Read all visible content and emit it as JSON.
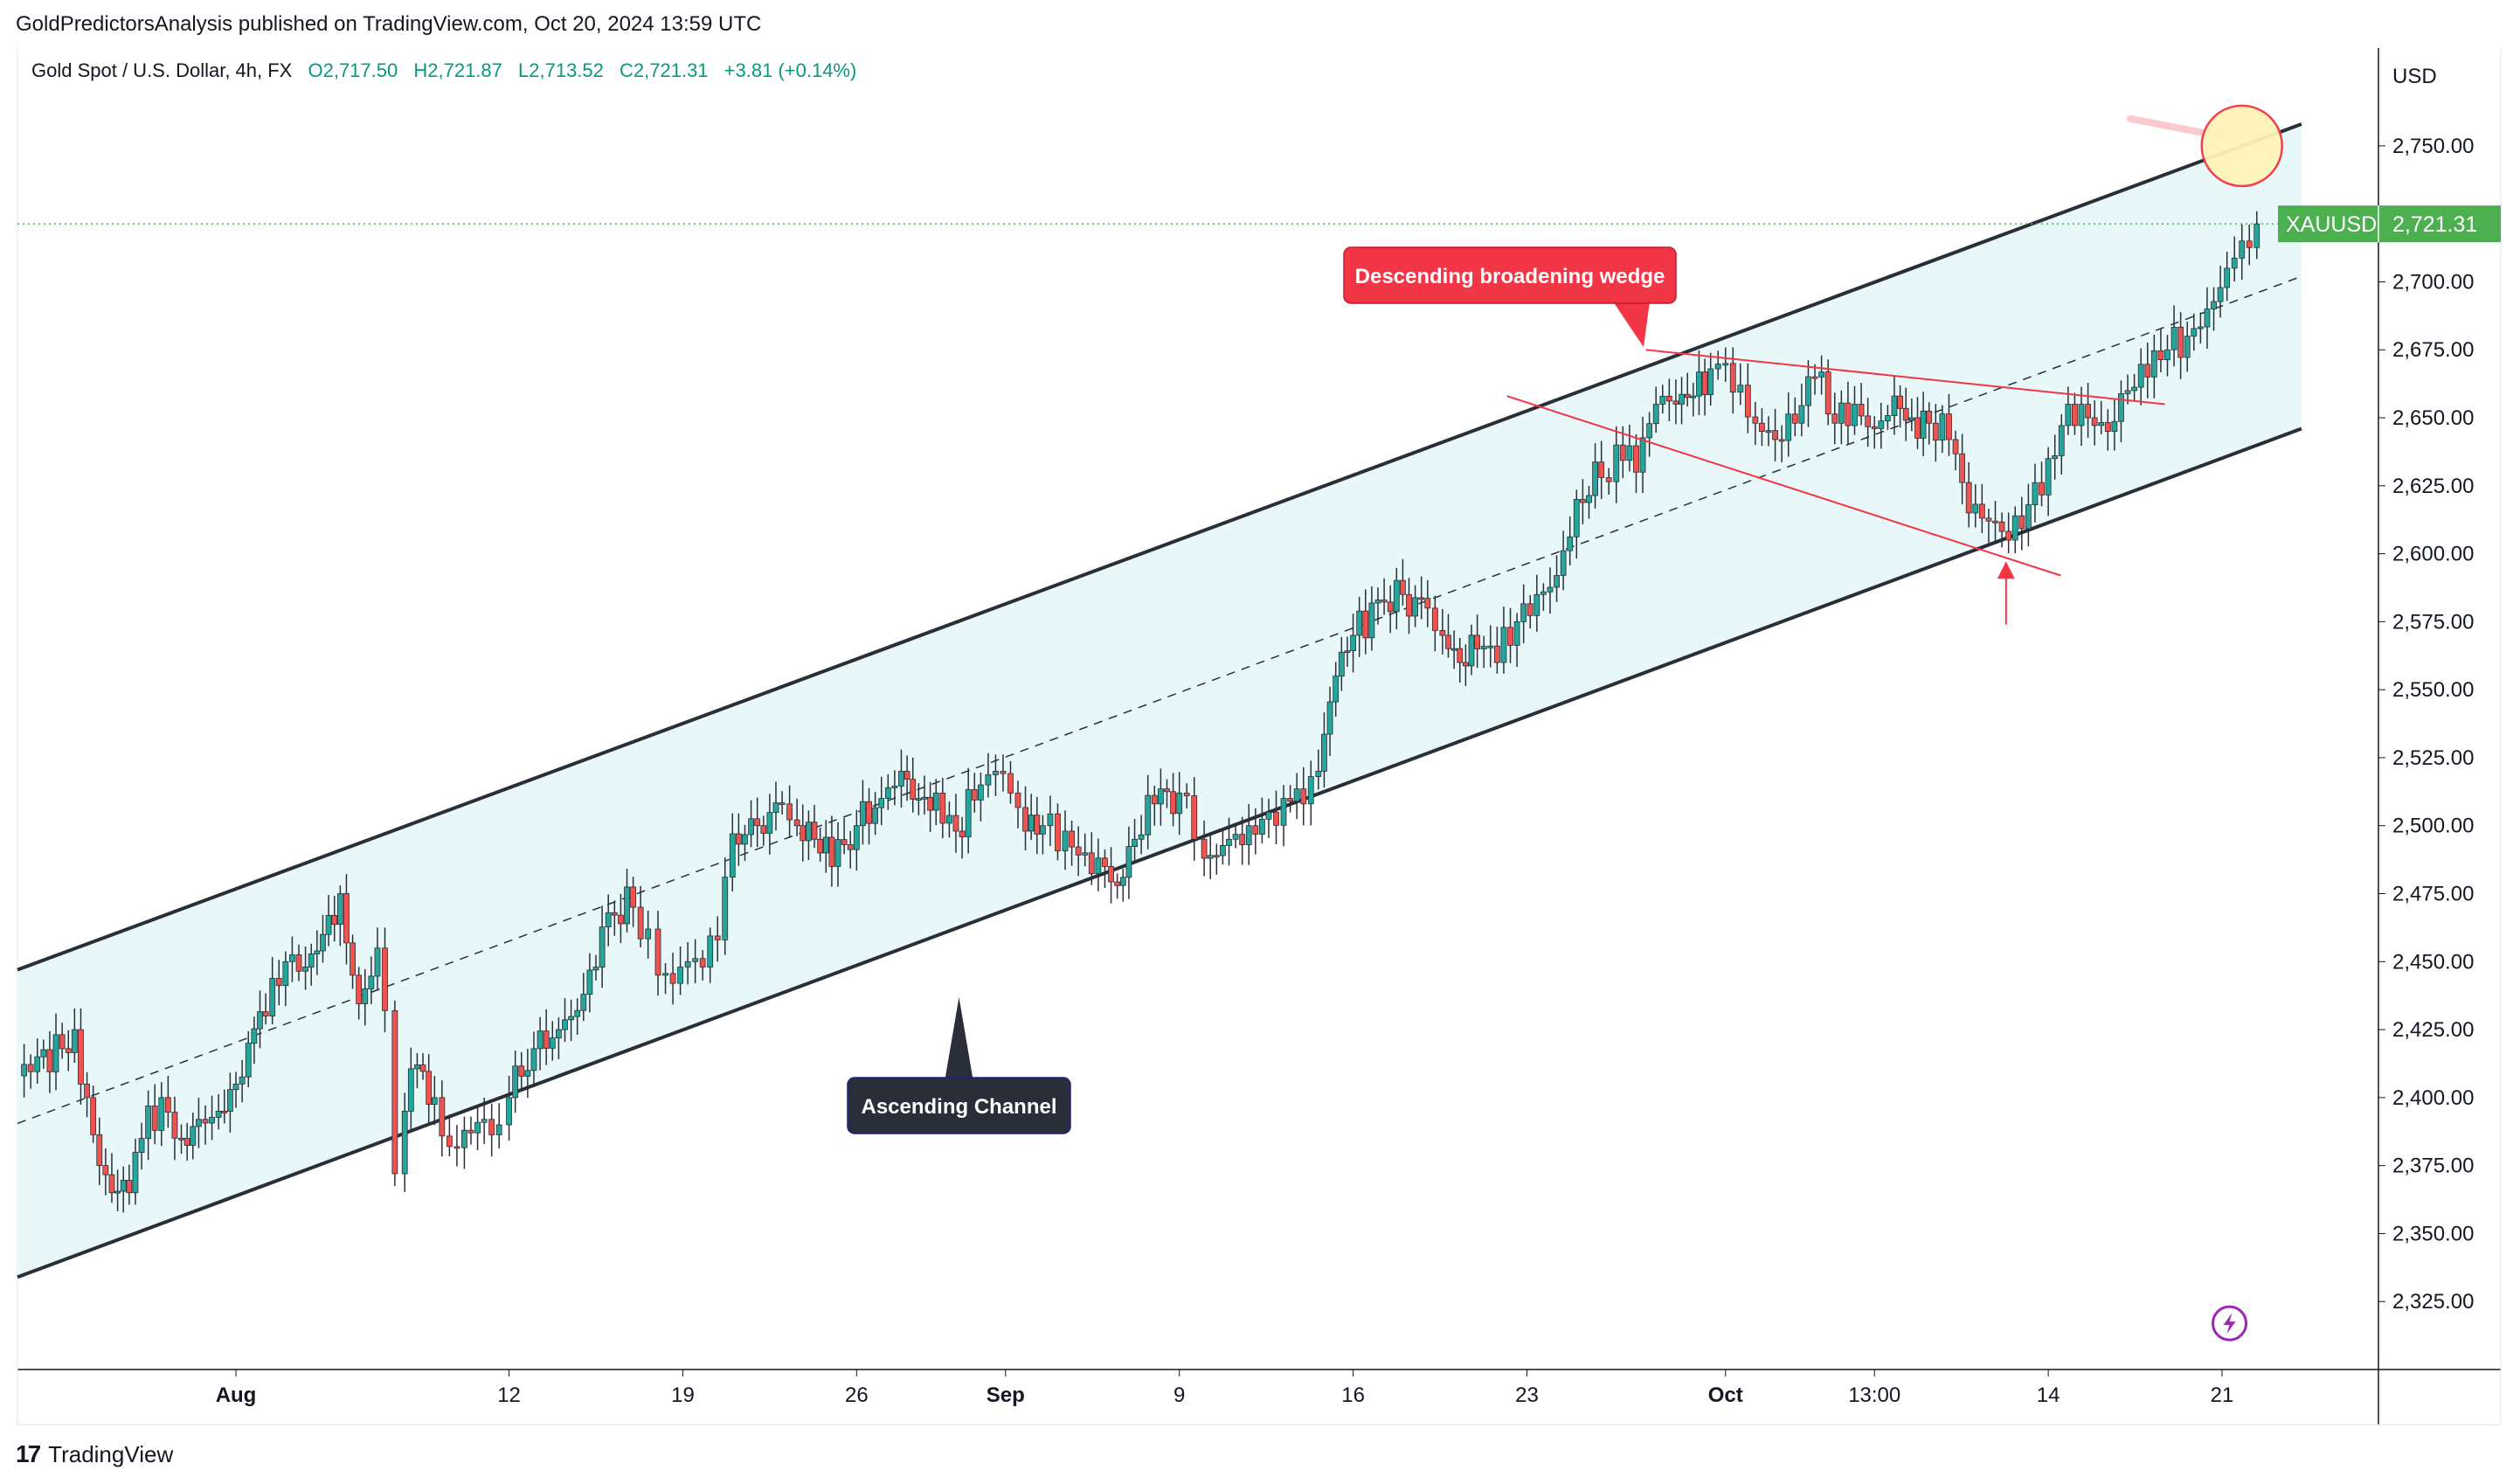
{
  "publisher": {
    "text": "GoldPredictorsAnalysis published on TradingView.com, Oct 20, 2024 13:59 UTC"
  },
  "legend": {
    "symbol": "Gold Spot / U.S. Dollar, 4h, FX",
    "open": "O2,717.50",
    "high": "H2,721.87",
    "low": "L2,713.52",
    "close": "C2,721.31",
    "change": "+3.81 (+0.14%)"
  },
  "currency": "USD",
  "price_tag": {
    "symbol": "XAUUSD",
    "value": "2,721.31",
    "color": "#4caf50"
  },
  "annotations": {
    "wedge_label": "Descending broadening wedge",
    "channel_label": "Ascending Channel"
  },
  "brand": {
    "name": "TradingView",
    "logo": "17"
  },
  "colors": {
    "bull": "#26a69a",
    "bear": "#ef5350",
    "channel_fill": "#e8f8f8",
    "channel_line": "#2a2e39",
    "wedge_line": "#f23645",
    "wedge_label_bg": "#f23645",
    "channel_label_bg": "#2a2e39"
  },
  "chart_data": {
    "type": "line",
    "title": "Gold Spot / U.S. Dollar, 4h, FX",
    "y_axis": {
      "ticks": [
        "2,325.00",
        "2,350.00",
        "2,375.00",
        "2,400.00",
        "2,425.00",
        "2,450.00",
        "2,475.00",
        "2,500.00",
        "2,525.00",
        "2,550.00",
        "2,575.00",
        "2,600.00",
        "2,625.00",
        "2,650.00",
        "2,675.00",
        "2,700.00",
        "2,750.00"
      ],
      "tick_values": [
        2325,
        2350,
        2375,
        2400,
        2425,
        2450,
        2475,
        2500,
        2525,
        2550,
        2575,
        2600,
        2625,
        2650,
        2675,
        2700,
        2750
      ],
      "range": [
        2300,
        2785
      ]
    },
    "x_axis": {
      "ticks": [
        "Aug",
        "12",
        "19",
        "26",
        "Sep",
        "9",
        "16",
        "23",
        "Oct",
        "13:00",
        "14",
        "21"
      ],
      "tick_days": [
        33,
        44,
        51,
        58,
        64,
        71,
        78,
        85,
        93,
        99,
        106,
        113
      ],
      "range": [
        24.2,
        119.3
      ]
    },
    "series": [
      {
        "kind": "close",
        "points": [
          [
            24.2,
            2408
          ],
          [
            25,
            2415
          ],
          [
            26,
            2418
          ],
          [
            26.5,
            2425
          ],
          [
            27,
            2400
          ],
          [
            27.5,
            2375
          ],
          [
            28,
            2365
          ],
          [
            28.7,
            2365
          ],
          [
            29.2,
            2385
          ],
          [
            30,
            2400
          ],
          [
            30.8,
            2385
          ],
          [
            31.5,
            2392
          ],
          [
            32.3,
            2395
          ],
          [
            33,
            2405
          ],
          [
            33.5,
            2420
          ],
          [
            34.2,
            2430
          ],
          [
            35,
            2450
          ],
          [
            35.8,
            2448
          ],
          [
            36.5,
            2460
          ],
          [
            37.2,
            2475
          ],
          [
            37.7,
            2445
          ],
          [
            38.2,
            2440
          ],
          [
            38.7,
            2455
          ],
          [
            39,
            2432
          ],
          [
            39.4,
            2372
          ],
          [
            39.8,
            2395
          ],
          [
            40.3,
            2412
          ],
          [
            41,
            2400
          ],
          [
            41.6,
            2382
          ],
          [
            42.2,
            2388
          ],
          [
            43,
            2392
          ],
          [
            43.6,
            2390
          ],
          [
            44,
            2400
          ],
          [
            45,
            2418
          ],
          [
            46,
            2425
          ],
          [
            47,
            2438
          ],
          [
            48,
            2468
          ],
          [
            49,
            2470
          ],
          [
            49.6,
            2462
          ],
          [
            50,
            2445
          ],
          [
            50.6,
            2442
          ],
          [
            51.2,
            2450
          ],
          [
            51.8,
            2448
          ],
          [
            52.4,
            2458
          ],
          [
            53,
            2497
          ],
          [
            54,
            2500
          ],
          [
            55,
            2508
          ],
          [
            55.6,
            2500
          ],
          [
            56.3,
            2495
          ],
          [
            57,
            2485
          ],
          [
            58,
            2500
          ],
          [
            59,
            2510
          ],
          [
            59.8,
            2520
          ],
          [
            60.5,
            2510
          ],
          [
            61.2,
            2512
          ],
          [
            62,
            2498
          ],
          [
            63,
            2515
          ],
          [
            63.6,
            2520
          ],
          [
            64.2,
            2512
          ],
          [
            64.8,
            2498
          ],
          [
            65.5,
            2500
          ],
          [
            66.4,
            2498
          ],
          [
            67.2,
            2490
          ],
          [
            68,
            2485
          ],
          [
            68.5,
            2478
          ],
          [
            69.2,
            2495
          ],
          [
            70,
            2508
          ],
          [
            71,
            2512
          ],
          [
            71.6,
            2495
          ],
          [
            72,
            2488
          ],
          [
            73,
            2495
          ],
          [
            73.8,
            2500
          ],
          [
            74.6,
            2505
          ],
          [
            75.2,
            2510
          ],
          [
            76,
            2508
          ],
          [
            76.6,
            2520
          ],
          [
            77.3,
            2555
          ],
          [
            78,
            2570
          ],
          [
            79,
            2583
          ],
          [
            80,
            2585
          ],
          [
            81,
            2580
          ],
          [
            81.6,
            2570
          ],
          [
            82.3,
            2560
          ],
          [
            83,
            2565
          ],
          [
            83.8,
            2560
          ],
          [
            84.6,
            2575
          ],
          [
            85.4,
            2585
          ],
          [
            86.2,
            2592
          ],
          [
            87,
            2620
          ],
          [
            88,
            2628
          ],
          [
            88.6,
            2640
          ],
          [
            89.4,
            2630
          ],
          [
            90.2,
            2655
          ],
          [
            91,
            2655
          ],
          [
            91.7,
            2658
          ],
          [
            92.4,
            2668
          ],
          [
            93,
            2670
          ],
          [
            93.6,
            2662
          ],
          [
            94.2,
            2648
          ],
          [
            95,
            2642
          ],
          [
            95.8,
            2648
          ],
          [
            96.6,
            2665
          ],
          [
            97.4,
            2648
          ],
          [
            98.2,
            2655
          ],
          [
            99,
            2646
          ],
          [
            99.8,
            2658
          ],
          [
            100.5,
            2650
          ],
          [
            101.2,
            2648
          ],
          [
            102,
            2642
          ],
          [
            102.8,
            2615
          ],
          [
            103.6,
            2612
          ],
          [
            104.4,
            2605
          ],
          [
            105.2,
            2618
          ],
          [
            106,
            2635
          ],
          [
            106.8,
            2655
          ],
          [
            107.6,
            2650
          ],
          [
            108.4,
            2645
          ],
          [
            109.2,
            2660
          ],
          [
            110,
            2665
          ],
          [
            110.8,
            2675
          ],
          [
            111.6,
            2680
          ],
          [
            112.4,
            2690
          ],
          [
            113.2,
            2705
          ],
          [
            113.8,
            2715
          ],
          [
            114.4,
            2721.31
          ]
        ]
      }
    ],
    "channel": {
      "upper": [
        [
          24.2,
          2447
        ],
        [
          116.2,
          2758
        ]
      ],
      "lower": [
        [
          24.2,
          2334
        ],
        [
          116.2,
          2646
        ]
      ],
      "mid": [
        [
          24.2,
          2390.5
        ],
        [
          116.2,
          2702
        ]
      ],
      "fill": "#e8f8f8"
    },
    "wedge": {
      "upper": [
        [
          89.8,
          2675
        ],
        [
          110.7,
          2655
        ]
      ],
      "lower": [
        [
          84.2,
          2658
        ],
        [
          106.5,
          2592
        ]
      ]
    },
    "current_price_line": 2721.31,
    "target_circle": {
      "day": 113.8,
      "price": 2750
    },
    "up_arrow": {
      "day": 104.3,
      "from": 2574,
      "to": 2594
    },
    "hint_arrow": {
      "from": [
        109.3,
        2760
      ],
      "to": [
        112.7,
        2754
      ]
    },
    "lightning_badge": {
      "day": 113.3,
      "price": 2317
    }
  }
}
